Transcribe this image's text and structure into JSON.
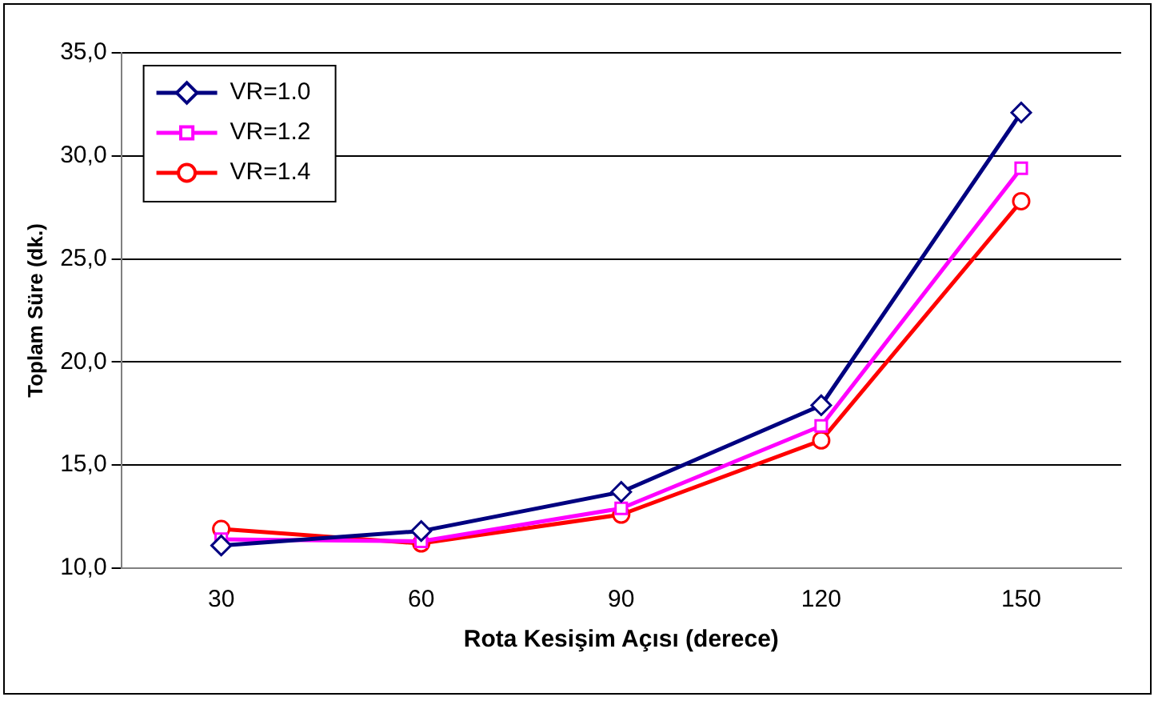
{
  "chart_data": {
    "type": "line",
    "xlabel": "Rota Kesişim Açısı (derece)",
    "ylabel": "Toplam Süre (dk.)",
    "categories": [
      "30",
      "60",
      "90",
      "120",
      "150"
    ],
    "series": [
      {
        "name": "VR=1.0",
        "color": "#000080",
        "marker": "diamond",
        "values": [
          11.1,
          11.8,
          13.7,
          17.9,
          32.1
        ]
      },
      {
        "name": "VR=1.2",
        "color": "#ff00ff",
        "marker": "square",
        "values": [
          11.4,
          11.3,
          12.9,
          16.9,
          29.4
        ]
      },
      {
        "name": "VR=1.4",
        "color": "#ff0000",
        "marker": "circle",
        "values": [
          11.9,
          11.2,
          12.6,
          16.2,
          27.8
        ]
      }
    ],
    "ylim": [
      10,
      35
    ],
    "yticks": [
      {
        "value": 10,
        "label": "10,0"
      },
      {
        "value": 15,
        "label": "15,0"
      },
      {
        "value": 20,
        "label": "20,0"
      },
      {
        "value": 25,
        "label": "25,0"
      },
      {
        "value": 30,
        "label": "30,0"
      },
      {
        "value": 35,
        "label": "35,0"
      }
    ],
    "grid": "y",
    "legend": "top left",
    "line_style": "solid"
  }
}
